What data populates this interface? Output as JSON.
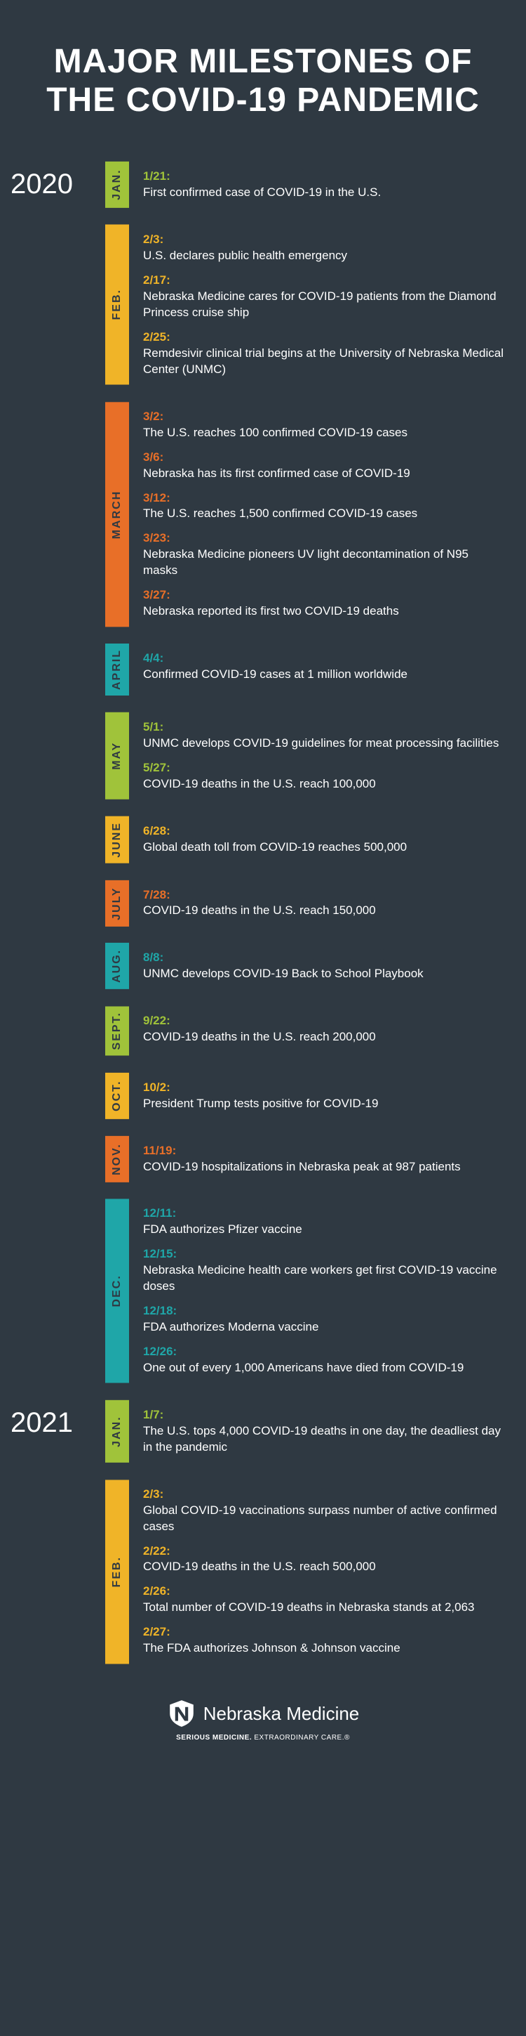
{
  "title": "MAJOR MILESTONES OF THE COVID-19 PANDEMIC",
  "title_fontsize": 48,
  "background_color": "#2f3942",
  "text_color": "#ffffff",
  "palette": {
    "green": "#a0c33a",
    "yellow": "#f0b428",
    "orange": "#e86f28",
    "teal": "#1fa6a8",
    "darkteal": "#1f7a8c"
  },
  "years": [
    {
      "year": "2020",
      "months": [
        {
          "label": "JAN.",
          "color": "#a0c33a",
          "text_color": "#2f3942",
          "entries": [
            {
              "date": "1/21:",
              "text": "First confirmed case of COVID-19 in the U.S.",
              "accent": "#a0c33a"
            }
          ]
        },
        {
          "label": "FEB.",
          "color": "#f0b428",
          "text_color": "#2f3942",
          "entries": [
            {
              "date": "2/3:",
              "text": "U.S. declares public health emergency",
              "accent": "#f0b428"
            },
            {
              "date": "2/17:",
              "text": "Nebraska Medicine cares for COVID-19 patients from the Diamond Princess cruise ship",
              "accent": "#f0b428"
            },
            {
              "date": "2/25:",
              "text": "Remdesivir clinical trial begins at the University of Nebraska Medical Center (UNMC)",
              "accent": "#f0b428"
            }
          ]
        },
        {
          "label": "MARCH",
          "color": "#e86f28",
          "text_color": "#2f3942",
          "entries": [
            {
              "date": "3/2:",
              "text": "The U.S. reaches 100 confirmed COVID-19 cases",
              "accent": "#e86f28"
            },
            {
              "date": "3/6:",
              "text": "Nebraska has its first confirmed case of COVID-19",
              "accent": "#e86f28"
            },
            {
              "date": "3/12:",
              "text": "The U.S. reaches 1,500 confirmed COVID-19 cases",
              "accent": "#e86f28"
            },
            {
              "date": "3/23:",
              "text": "Nebraska Medicine pioneers UV light decontamination of N95 masks",
              "accent": "#e86f28"
            },
            {
              "date": "3/27:",
              "text": "Nebraska reported its first two COVID-19 deaths",
              "accent": "#e86f28"
            }
          ]
        },
        {
          "label": "APRIL",
          "color": "#1fa6a8",
          "text_color": "#2f3942",
          "entries": [
            {
              "date": "4/4:",
              "text": "Confirmed COVID-19 cases at 1 million worldwide",
              "accent": "#1fa6a8"
            }
          ]
        },
        {
          "label": "MAY",
          "color": "#a0c33a",
          "text_color": "#2f3942",
          "entries": [
            {
              "date": "5/1:",
              "text": "UNMC develops COVID-19 guidelines for meat processing facilities",
              "accent": "#a0c33a"
            },
            {
              "date": "5/27:",
              "text": "COVID-19 deaths in the U.S. reach 100,000",
              "accent": "#a0c33a"
            }
          ]
        },
        {
          "label": "JUNE",
          "color": "#f0b428",
          "text_color": "#2f3942",
          "entries": [
            {
              "date": "6/28:",
              "text": "Global death toll from COVID-19 reaches 500,000",
              "accent": "#f0b428"
            }
          ]
        },
        {
          "label": "JULY",
          "color": "#e86f28",
          "text_color": "#2f3942",
          "entries": [
            {
              "date": "7/28:",
              "text": "COVID-19 deaths in the U.S. reach 150,000",
              "accent": "#e86f28"
            }
          ]
        },
        {
          "label": "AUG.",
          "color": "#1fa6a8",
          "text_color": "#2f3942",
          "entries": [
            {
              "date": "8/8:",
              "text": "UNMC develops COVID-19 Back to School Playbook",
              "accent": "#1fa6a8"
            }
          ]
        },
        {
          "label": "SEPT.",
          "color": "#a0c33a",
          "text_color": "#2f3942",
          "entries": [
            {
              "date": "9/22:",
              "text": "COVID-19 deaths in the U.S. reach 200,000",
              "accent": "#a0c33a"
            }
          ]
        },
        {
          "label": "OCT.",
          "color": "#f0b428",
          "text_color": "#2f3942",
          "entries": [
            {
              "date": "10/2:",
              "text": "President Trump tests positive for COVID-19",
              "accent": "#f0b428"
            }
          ]
        },
        {
          "label": "NOV.",
          "color": "#e86f28",
          "text_color": "#2f3942",
          "entries": [
            {
              "date": "11/19:",
              "text": "COVID-19 hospitalizations in Nebraska peak at 987 patients",
              "accent": "#e86f28"
            }
          ]
        },
        {
          "label": "DEC.",
          "color": "#1fa6a8",
          "text_color": "#2f3942",
          "entries": [
            {
              "date": "12/11:",
              "text": "FDA authorizes Pfizer vaccine",
              "accent": "#1fa6a8"
            },
            {
              "date": "12/15:",
              "text": "Nebraska Medicine health care workers get first COVID-19 vaccine doses",
              "accent": "#1fa6a8"
            },
            {
              "date": "12/18:",
              "text": "FDA authorizes Moderna vaccine",
              "accent": "#1fa6a8"
            },
            {
              "date": "12/26:",
              "text": "One out of every 1,000 Americans have died from COVID-19",
              "accent": "#1fa6a8"
            }
          ]
        }
      ]
    },
    {
      "year": "2021",
      "months": [
        {
          "label": "JAN.",
          "color": "#a0c33a",
          "text_color": "#2f3942",
          "entries": [
            {
              "date": "1/7:",
              "text": "The U.S. tops 4,000 COVID-19 deaths in one day, the deadliest day in the pandemic",
              "accent": "#a0c33a"
            }
          ]
        },
        {
          "label": "FEB.",
          "color": "#f0b428",
          "text_color": "#2f3942",
          "entries": [
            {
              "date": "2/3:",
              "text": "Global COVID-19 vaccinations surpass number of active confirmed cases",
              "accent": "#f0b428"
            },
            {
              "date": "2/22:",
              "text": "COVID-19 deaths in the U.S. reach 500,000",
              "accent": "#f0b428"
            },
            {
              "date": "2/26:",
              "text": "Total number of COVID-19 deaths in Nebraska stands at 2,063",
              "accent": "#f0b428"
            },
            {
              "date": "2/27:",
              "text": "The FDA authorizes Johnson & Johnson vaccine",
              "accent": "#f0b428"
            }
          ]
        }
      ]
    }
  ],
  "footer": {
    "brand": "Nebraska Medicine",
    "tagline_bold": "SERIOUS MEDICINE.",
    "tagline_rest": " EXTRAORDINARY CARE.®"
  }
}
